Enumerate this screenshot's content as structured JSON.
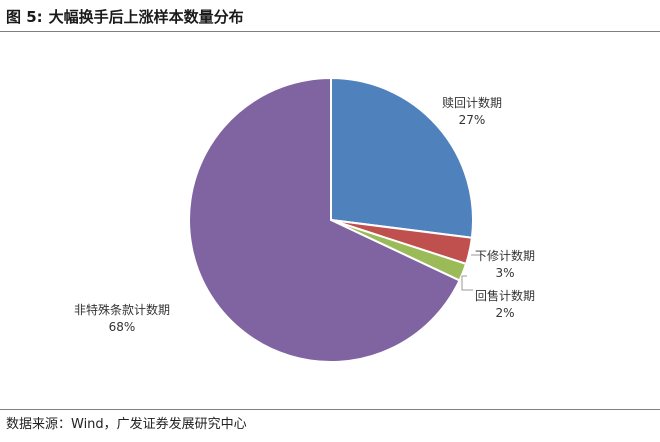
{
  "header": {
    "figure_label": "图 5:",
    "title": "大幅换手后上涨样本数量分布"
  },
  "source": "数据来源：Wind，广发证券发展研究中心",
  "chart_data": {
    "type": "pie",
    "title": "大幅换手后上涨样本数量分布",
    "slices": [
      {
        "label": "赎回计数期",
        "value": 27,
        "display": "27%",
        "color": "#4f81bd"
      },
      {
        "label": "下修计数期",
        "value": 3,
        "display": "3%",
        "color": "#c0504d"
      },
      {
        "label": "回售计数期",
        "value": 2,
        "display": "2%",
        "color": "#9bbb59"
      },
      {
        "label": "非特殊条款计数期",
        "value": 68,
        "display": "68%",
        "color": "#8064a2"
      }
    ],
    "start_angle": "12 o'clock",
    "direction": "clockwise",
    "legend": "none"
  }
}
